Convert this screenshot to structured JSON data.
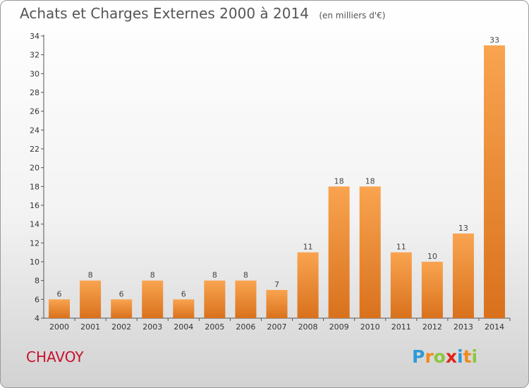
{
  "chart_data": {
    "type": "bar",
    "title": "Achats et Charges Externes 2000 à 2014",
    "subtitle": "(en milliers d'€)",
    "categories": [
      "2000",
      "2001",
      "2002",
      "2003",
      "2004",
      "2005",
      "2006",
      "2007",
      "2008",
      "2009",
      "2010",
      "2011",
      "2012",
      "2013",
      "2014"
    ],
    "values": [
      6,
      8,
      6,
      8,
      6,
      8,
      8,
      7,
      11,
      18,
      18,
      11,
      10,
      13,
      33
    ],
    "ylim": [
      4,
      34
    ],
    "yticks": [
      4,
      6,
      8,
      10,
      12,
      14,
      16,
      18,
      20,
      22,
      24,
      26,
      28,
      30,
      32,
      34
    ],
    "grid": false,
    "bar_color_top": "#f9a450",
    "bar_color_bottom": "#d9711c"
  },
  "footer": {
    "commune": "CHAVOY",
    "logo_letters": [
      {
        "char": "P",
        "color": "#2e9ad6"
      },
      {
        "char": "r",
        "color": "#f08a1c"
      },
      {
        "char": "o",
        "color": "#8cc63f"
      },
      {
        "char": "x",
        "color": "#e2231a"
      },
      {
        "char": "i",
        "color": "#2e9ad6"
      },
      {
        "char": "t",
        "color": "#f08a1c"
      },
      {
        "char": "i",
        "color": "#8cc63f"
      }
    ]
  }
}
